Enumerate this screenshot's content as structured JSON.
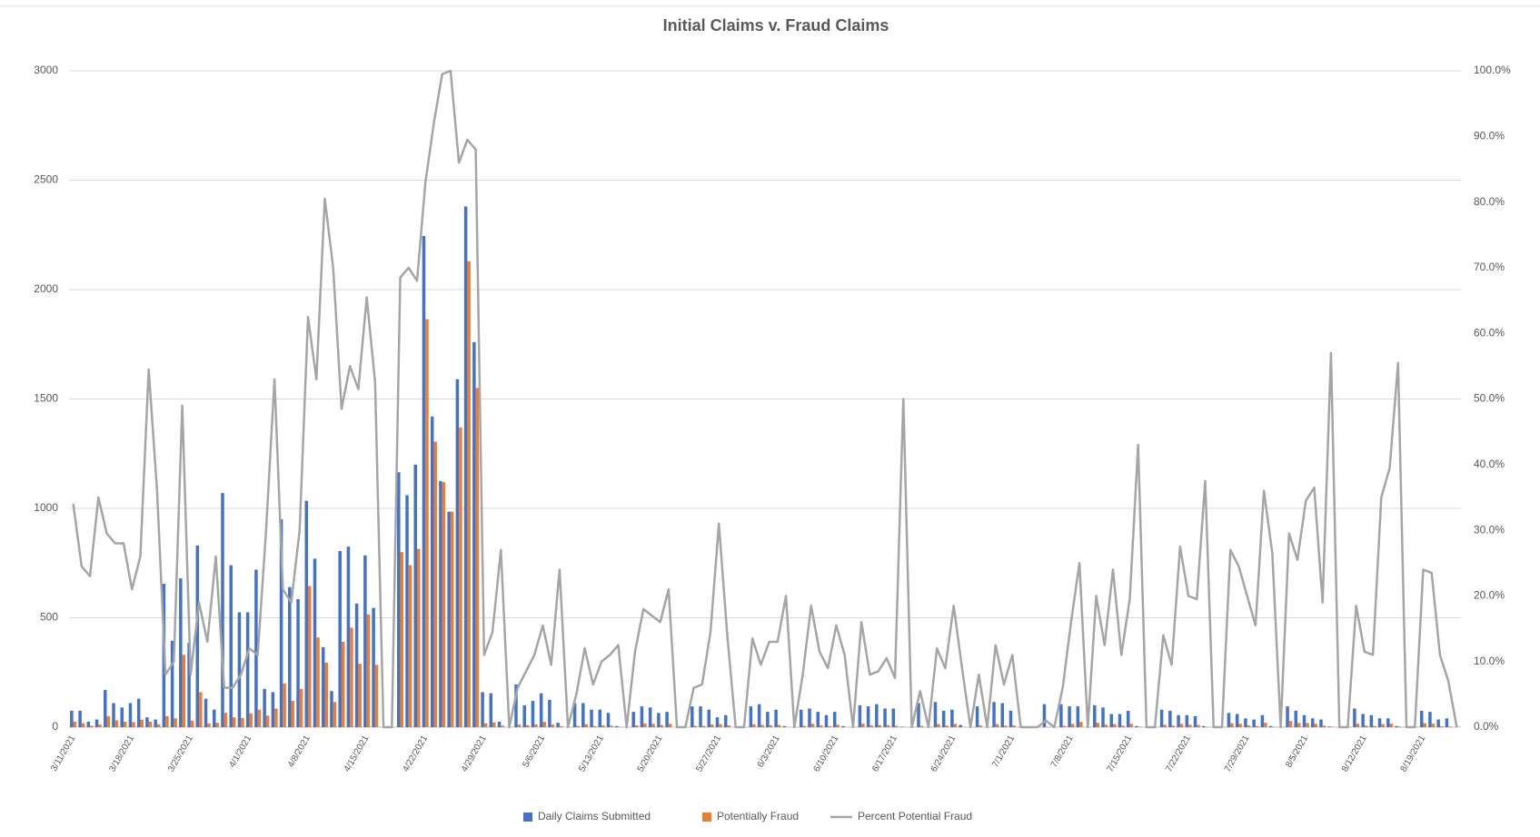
{
  "chart_data": {
    "type": "bar",
    "title": "Initial Claims v. Fraud Claims",
    "categories": [
      "3/11/2021",
      null,
      null,
      null,
      null,
      null,
      null,
      "3/18/2021",
      null,
      null,
      null,
      null,
      null,
      null,
      "3/25/2021",
      null,
      null,
      null,
      null,
      null,
      null,
      "4/1/2021",
      null,
      null,
      null,
      null,
      null,
      null,
      "4/8/2021",
      null,
      null,
      null,
      null,
      null,
      null,
      "4/15/2021",
      null,
      null,
      null,
      null,
      null,
      null,
      "4/22/2021",
      null,
      null,
      null,
      null,
      null,
      null,
      "4/29/2021",
      null,
      null,
      null,
      null,
      null,
      null,
      "5/6/2021",
      null,
      null,
      null,
      null,
      null,
      null,
      "5/13/2021",
      null,
      null,
      null,
      null,
      null,
      null,
      "5/20/2021",
      null,
      null,
      null,
      null,
      null,
      null,
      "5/27/2021",
      null,
      null,
      null,
      null,
      null,
      null,
      "6/3/2021",
      null,
      null,
      null,
      null,
      null,
      null,
      "6/10/2021",
      null,
      null,
      null,
      null,
      null,
      null,
      "6/17/2021",
      null,
      null,
      null,
      null,
      null,
      null,
      "6/24/2021",
      null,
      null,
      null,
      null,
      null,
      null,
      "7/1/2021",
      null,
      null,
      null,
      null,
      null,
      null,
      "7/8/2021",
      null,
      null,
      null,
      null,
      null,
      null,
      "7/15/2021",
      null,
      null,
      null,
      null,
      null,
      null,
      "7/22/2021",
      null,
      null,
      null,
      null,
      null,
      null,
      "7/29/2021",
      null,
      null,
      null,
      null,
      null,
      null,
      "8/5/2021",
      null,
      null,
      null,
      null,
      null,
      null,
      "8/12/2021",
      null,
      null,
      null,
      null,
      null,
      null,
      "8/19/2021",
      null,
      null,
      null,
      null
    ],
    "series": [
      {
        "name": "Daily Claims Submitted",
        "type": "bar",
        "color": "#4472c4",
        "values": [
          75,
          75,
          25,
          35,
          170,
          110,
          90,
          110,
          130,
          45,
          35,
          655,
          395,
          680,
          385,
          830,
          130,
          80,
          1070,
          740,
          525,
          525,
          720,
          175,
          160,
          950,
          640,
          585,
          1035,
          770,
          365,
          165,
          805,
          825,
          565,
          785,
          545,
          0,
          0,
          1165,
          1060,
          1200,
          2245,
          1420,
          1125,
          985,
          1590,
          2380,
          1760,
          160,
          155,
          25,
          0,
          195,
          100,
          120,
          155,
          125,
          20,
          0,
          110,
          110,
          80,
          80,
          65,
          5,
          0,
          70,
          95,
          90,
          65,
          70,
          0,
          0,
          95,
          95,
          80,
          45,
          55,
          0,
          0,
          95,
          105,
          70,
          80,
          5,
          0,
          80,
          85,
          70,
          55,
          70,
          5,
          0,
          100,
          95,
          105,
          85,
          85,
          2,
          0,
          110,
          0,
          115,
          75,
          80,
          10,
          0,
          95,
          0,
          115,
          110,
          75,
          0,
          0,
          0,
          105,
          0,
          105,
          95,
          95,
          0,
          100,
          90,
          60,
          60,
          75,
          5,
          0,
          0,
          80,
          75,
          55,
          55,
          50,
          5,
          0,
          0,
          65,
          60,
          40,
          35,
          55,
          5,
          0,
          95,
          75,
          55,
          40,
          35,
          3,
          0,
          0,
          85,
          60,
          55,
          40,
          40,
          5,
          0,
          0,
          75,
          70,
          35,
          40,
          0
        ]
      },
      {
        "name": "Potentially Fraud",
        "type": "bar",
        "color": "#ed7d31",
        "values": [
          25,
          18,
          6,
          12,
          50,
          31,
          25,
          23,
          34,
          25,
          13,
          50,
          40,
          330,
          30,
          160,
          17,
          20,
          65,
          45,
          42,
          63,
          80,
          53,
          85,
          200,
          120,
          175,
          645,
          410,
          295,
          115,
          390,
          455,
          290,
          515,
          285,
          0,
          0,
          800,
          740,
          815,
          1865,
          1305,
          1120,
          985,
          1370,
          2130,
          1550,
          18,
          22,
          7,
          0,
          12,
          9,
          13,
          24,
          12,
          5,
          0,
          6,
          13,
          5,
          8,
          7,
          1,
          0,
          8,
          17,
          15,
          10,
          15,
          0,
          0,
          6,
          6,
          12,
          14,
          8,
          0,
          0,
          13,
          10,
          9,
          10,
          1,
          0,
          6,
          16,
          8,
          5,
          11,
          1,
          0,
          16,
          8,
          9,
          9,
          6,
          1,
          0,
          6,
          0,
          14,
          7,
          15,
          1,
          0,
          8,
          0,
          14,
          7,
          8,
          0,
          0,
          0,
          1,
          0,
          6,
          15,
          24,
          0,
          20,
          11,
          14,
          7,
          15,
          2,
          0,
          0,
          11,
          7,
          15,
          11,
          10,
          2,
          0,
          0,
          18,
          15,
          8,
          5,
          20,
          1,
          0,
          28,
          19,
          19,
          15,
          7,
          2,
          0,
          0,
          16,
          7,
          6,
          14,
          16,
          3,
          0,
          0,
          18,
          16,
          4,
          3,
          0
        ]
      },
      {
        "name": "Percent Potential Fraud",
        "type": "line",
        "axis": "y2",
        "color": "#a5a5a5",
        "values": [
          34,
          24.5,
          23,
          35,
          29.5,
          28,
          28,
          21,
          26,
          54.5,
          36,
          8,
          10,
          49,
          8,
          19,
          13,
          26,
          6,
          6,
          8,
          12,
          11,
          30,
          53,
          21,
          19,
          30,
          62.5,
          53,
          80.5,
          70,
          48.5,
          55,
          51.5,
          65.5,
          52.5,
          0,
          0,
          68.5,
          70,
          68,
          83,
          92,
          99.5,
          100,
          86,
          89.5,
          88,
          11,
          14.5,
          27,
          0,
          6,
          8.5,
          11,
          15.5,
          9.5,
          24,
          0,
          5,
          12,
          6.5,
          10,
          11,
          12.5,
          0,
          11.5,
          18,
          17,
          16,
          21,
          0,
          0,
          6,
          6.5,
          14.5,
          31,
          14,
          0,
          0,
          13.5,
          9.5,
          13,
          13,
          20,
          0,
          8,
          18.5,
          11.5,
          9,
          15.5,
          11,
          0,
          16,
          8,
          8.5,
          10.5,
          7.5,
          50,
          0,
          5.5,
          0,
          12,
          9,
          18.5,
          9,
          0,
          8,
          0,
          12.5,
          6.5,
          11,
          0,
          0,
          0,
          1,
          0,
          6,
          16,
          25,
          0,
          20,
          12.5,
          24,
          11,
          19.5,
          43,
          0,
          0,
          14,
          9.5,
          27.5,
          20,
          19.5,
          37.5,
          0,
          0,
          27,
          24.5,
          20,
          15.5,
          36,
          26.5,
          0,
          29.5,
          25.5,
          34.5,
          36.5,
          19,
          57,
          0,
          0,
          18.5,
          11.5,
          11,
          35,
          39.5,
          55.5,
          0,
          0,
          24,
          23.5,
          11,
          7,
          0
        ]
      }
    ],
    "ylim": [
      0,
      3000
    ],
    "yticks": [
      0,
      500,
      1000,
      1500,
      2000,
      2500,
      3000
    ],
    "y2lim": [
      0,
      100
    ],
    "y2ticks": [
      {
        "value": 0,
        "label": "0.0%"
      },
      {
        "value": 10,
        "label": "10.0%"
      },
      {
        "value": 20,
        "label": "20.0%"
      },
      {
        "value": 30,
        "label": "30.0%"
      },
      {
        "value": 40,
        "label": "40.0%"
      },
      {
        "value": 50,
        "label": "50.0%"
      },
      {
        "value": 60,
        "label": "60.0%"
      },
      {
        "value": 70,
        "label": "70.0%"
      },
      {
        "value": 80,
        "label": "80.0%"
      },
      {
        "value": 90,
        "label": "90.0%"
      },
      {
        "value": 100,
        "label": "100.0%"
      }
    ],
    "grid": true,
    "legend": "bottom"
  }
}
